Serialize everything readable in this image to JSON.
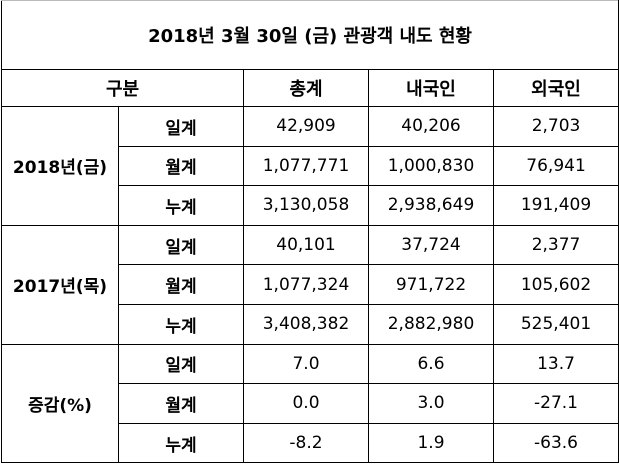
{
  "title": "2018년 3월 30일 (금) 관광객 내도 현황",
  "header": {
    "category": "구분",
    "columns": [
      "총계",
      "내국인",
      "외국인"
    ]
  },
  "groups": [
    {
      "label": "2018년(금)",
      "rows": [
        {
          "label": "일계",
          "values": [
            "42,909",
            "40,206",
            "2,703"
          ]
        },
        {
          "label": "월계",
          "values": [
            "1,077,771",
            "1,000,830",
            "76,941"
          ]
        },
        {
          "label": "누계",
          "values": [
            "3,130,058",
            "2,938,649",
            "191,409"
          ]
        }
      ]
    },
    {
      "label": "2017년(목)",
      "rows": [
        {
          "label": "일계",
          "values": [
            "40,101",
            "37,724",
            "2,377"
          ]
        },
        {
          "label": "월계",
          "values": [
            "1,077,324",
            "971,722",
            "105,602"
          ]
        },
        {
          "label": "누계",
          "values": [
            "3,408,382",
            "2,882,980",
            "525,401"
          ]
        }
      ]
    },
    {
      "label": "증감(%)",
      "rows": [
        {
          "label": "일계",
          "values": [
            "7.0",
            "6.6",
            "13.7"
          ]
        },
        {
          "label": "월계",
          "values": [
            "0.0",
            "3.0",
            "-27.1"
          ]
        },
        {
          "label": "누계",
          "values": [
            "-8.2",
            "1.9",
            "-63.6"
          ]
        }
      ]
    }
  ]
}
